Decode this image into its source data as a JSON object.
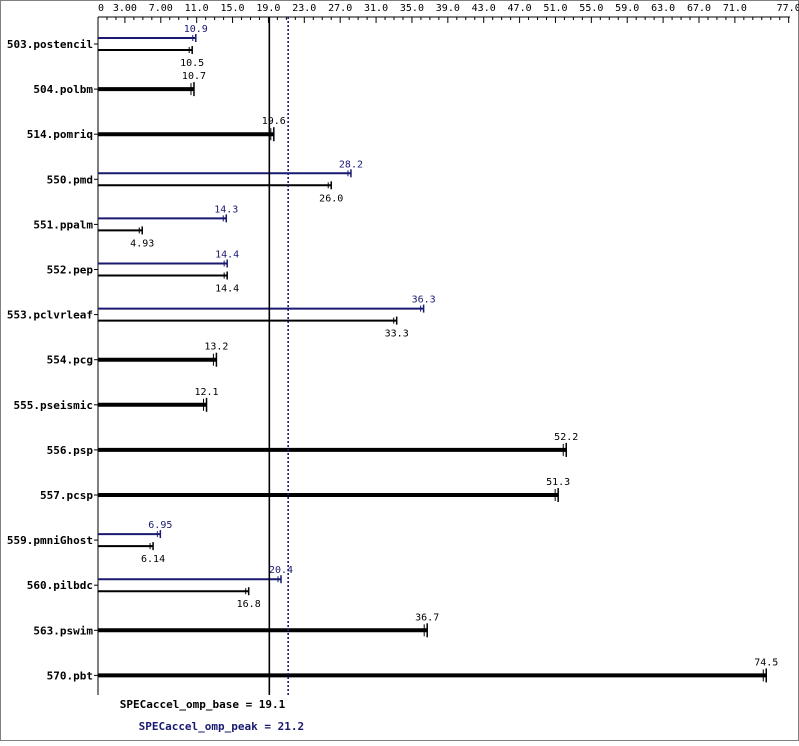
{
  "chart_data": {
    "type": "bar",
    "xlim": [
      0,
      79.5
    ],
    "x_tick_labels": [
      "0",
      "3.00",
      "7.00",
      "11.0",
      "15.0",
      "19.0",
      "23.0",
      "27.0",
      "31.0",
      "35.0",
      "39.0",
      "43.0",
      "47.0",
      "51.0",
      "55.0",
      "59.0",
      "63.0",
      "67.0",
      "71.0",
      "77.0"
    ],
    "x_tick_values": [
      0,
      3,
      7,
      11,
      15,
      19,
      23,
      27,
      31,
      35,
      39,
      43,
      47,
      51,
      55,
      59,
      63,
      67,
      71,
      77
    ],
    "series": [
      {
        "name": "base",
        "color": "#000000"
      },
      {
        "name": "peak",
        "color": "#191970"
      }
    ],
    "benchmarks": [
      {
        "name": "503.postencil",
        "peak": 10.9,
        "base": 10.5,
        "peak_label": "10.9",
        "base_label": "10.5"
      },
      {
        "name": "504.polbm",
        "same": 10.7,
        "label": "10.7"
      },
      {
        "name": "514.pomriq",
        "same": 19.6,
        "label": "19.6"
      },
      {
        "name": "550.pmd",
        "peak": 28.2,
        "base": 26.0,
        "peak_label": "28.2",
        "base_label": "26.0"
      },
      {
        "name": "551.ppalm",
        "peak": 14.3,
        "base": 4.93,
        "peak_label": "14.3",
        "base_label": "4.93"
      },
      {
        "name": "552.pep",
        "peak": 14.4,
        "base": 14.4,
        "peak_label": "14.4",
        "base_label": "14.4"
      },
      {
        "name": "553.pclvrleaf",
        "peak": 36.3,
        "base": 33.3,
        "peak_label": "36.3",
        "base_label": "33.3"
      },
      {
        "name": "554.pcg",
        "same": 13.2,
        "label": "13.2"
      },
      {
        "name": "555.pseismic",
        "same": 12.1,
        "label": "12.1"
      },
      {
        "name": "556.psp",
        "same": 52.2,
        "label": "52.2"
      },
      {
        "name": "557.pcsp",
        "same": 51.3,
        "label": "51.3"
      },
      {
        "name": "559.pmniGhost",
        "peak": 6.95,
        "base": 6.14,
        "peak_label": "6.95",
        "base_label": "6.14"
      },
      {
        "name": "560.pilbdc",
        "peak": 20.4,
        "base": 16.8,
        "peak_label": "20.4",
        "base_label": "16.8"
      },
      {
        "name": "563.pswim",
        "same": 36.7,
        "label": "36.7"
      },
      {
        "name": "570.pbt",
        "same": 74.5,
        "label": "74.5"
      }
    ],
    "reference_lines": [
      {
        "value": 19.1,
        "label": "SPECaccel_omp_base = 19.1",
        "color": "#000000",
        "style": "solid"
      },
      {
        "value": 21.2,
        "label": "SPECaccel_omp_peak = 21.2",
        "color": "#191970",
        "style": "dotted"
      }
    ]
  }
}
